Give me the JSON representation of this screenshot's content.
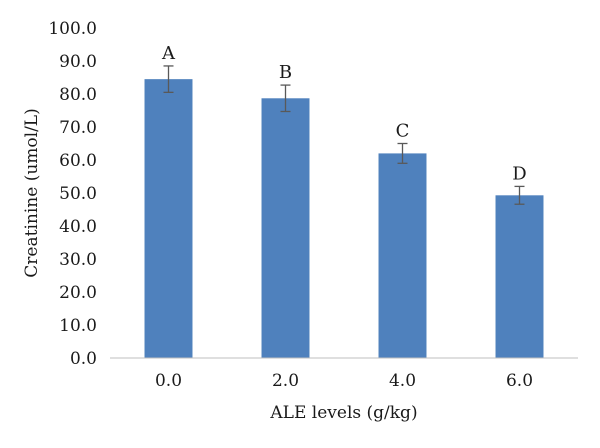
{
  "chart_data": {
    "type": "bar",
    "categories": [
      "0.0",
      "2.0",
      "4.0",
      "6.0"
    ],
    "values": [
      84.5,
      78.7,
      62.0,
      49.3
    ],
    "errors": [
      4.0,
      4.0,
      3.0,
      2.7
    ],
    "significance_labels": [
      "A",
      "B",
      "C",
      "D"
    ],
    "xlabel": "ALE levels (g/kg)",
    "ylabel": "Creatinine (umol/L)",
    "ylim": [
      0,
      100
    ],
    "yticks": [
      "0.0",
      "10.0",
      "20.0",
      "30.0",
      "40.0",
      "50.0",
      "60.0",
      "70.0",
      "80.0",
      "90.0",
      "100.0"
    ],
    "grid": false,
    "colors": {
      "bar": "#4f81bd",
      "error_bar": "#595959",
      "axis": "#1a1a1a"
    }
  }
}
